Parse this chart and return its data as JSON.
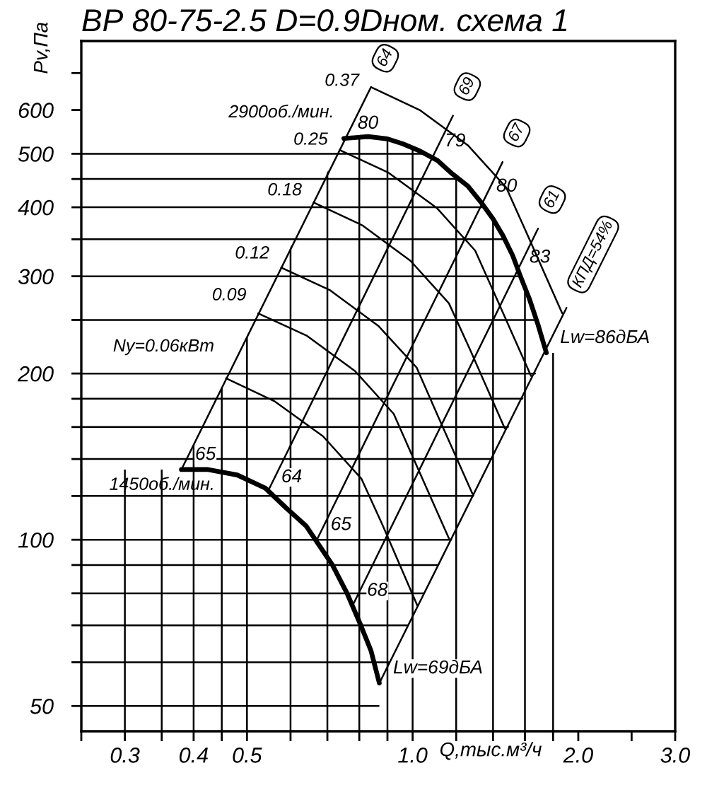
{
  "chart_data": {
    "type": "line",
    "title": "ВР 80-75-2.5 D=0.9Dном. схема 1",
    "xlabel": "Q,тыс.м³/ч",
    "ylabel": "Pv,Па",
    "log": "xy",
    "xlim": [
      0.25,
      3
    ],
    "ylim": [
      45,
      800
    ],
    "xticks": [
      {
        "value": 0.25,
        "label": null
      },
      0.3,
      {
        "value": 0.35,
        "label": null
      },
      0.4,
      {
        "value": 0.45,
        "label": null
      },
      0.5,
      {
        "value": 0.6,
        "label": null
      },
      {
        "value": 0.7,
        "label": null
      },
      {
        "value": 0.8,
        "label": null
      },
      {
        "value": 0.9,
        "label": null
      },
      {
        "value": 1,
        "label": "1.0"
      },
      {
        "value": 1.2,
        "label": null
      },
      {
        "value": 1.4,
        "label": null
      },
      {
        "value": 1.6,
        "label": null
      },
      {
        "value": 1.8,
        "label": null
      },
      {
        "value": 2,
        "label": "2.0"
      },
      {
        "value": 2.5,
        "label": null
      },
      {
        "value": 3,
        "label": "3.0"
      }
    ],
    "yticks": [
      50,
      {
        "value": 60,
        "label": null
      },
      {
        "value": 70,
        "label": null
      },
      {
        "value": 80,
        "label": null
      },
      {
        "value": 90,
        "label": null
      },
      100,
      {
        "value": 120,
        "label": null
      },
      {
        "value": 140,
        "label": null
      },
      {
        "value": 160,
        "label": null
      },
      {
        "value": 180,
        "label": null
      },
      200,
      {
        "value": 250,
        "label": null
      },
      300,
      {
        "value": 350,
        "label": null
      },
      400,
      {
        "value": 450,
        "label": null
      },
      500,
      600,
      {
        "value": 700,
        "label": null
      }
    ],
    "grid": true,
    "series": [
      {
        "name": "2900об./мин.",
        "color": "#000000",
        "x": [
          0.75,
          0.83,
          0.9,
          0.96,
          1.03,
          1.11,
          1.18,
          1.26,
          1.33,
          1.4,
          1.46,
          1.52,
          1.57,
          1.63,
          1.69,
          1.75
        ],
        "values": [
          533,
          537,
          532,
          521,
          506,
          486,
          460,
          437,
          409,
          381,
          355,
          327,
          300,
          273,
          245,
          218
        ]
      },
      {
        "name": "1450об./мин.",
        "color": "#000000",
        "x": [
          0.38,
          0.425,
          0.48,
          0.54,
          0.59,
          0.64,
          0.675,
          0.715,
          0.76,
          0.805,
          0.84,
          0.87
        ],
        "values": [
          134,
          134,
          131,
          124,
          114,
          106,
          98,
          90,
          80,
          70,
          63,
          55
        ]
      },
      {
        "name": "Ny=0.06кВт",
        "color": "#000000",
        "x": [
          0.458,
          0.562,
          0.687,
          0.807,
          0.883,
          1.02
        ],
        "values": [
          196,
          178,
          154,
          129,
          106,
          76
        ]
      },
      {
        "name": "0.09",
        "color": "#000000",
        "x": [
          0.524,
          0.643,
          0.786,
          0.924,
          1.011,
          1.167
        ],
        "values": [
          257,
          234,
          202,
          169,
          138,
          100
        ]
      },
      {
        "name": "0.12",
        "color": "#000000",
        "x": [
          0.577,
          0.708,
          0.866,
          1.017,
          1.113,
          1.285
        ],
        "values": [
          311,
          283,
          244,
          205,
          167,
          121
        ]
      },
      {
        "name": "0.18",
        "color": "#000000",
        "x": [
          0.661,
          0.81,
          0.991,
          1.164,
          1.274,
          1.471
        ],
        "values": [
          408,
          371,
          320,
          268,
          220,
          159
        ]
      },
      {
        "name": "0.25",
        "color": "#000000",
        "x": [
          0.737,
          0.904,
          1.106,
          1.299,
          1.422,
          1.641
        ],
        "values": [
          508,
          462,
          399,
          334,
          273,
          198
        ]
      },
      {
        "name": "0.37",
        "color": "#000000",
        "x": [
          0.84,
          1.03,
          1.26,
          1.48,
          1.62,
          1.87
        ],
        "values": [
          660,
          600,
          518,
          434,
          355,
          257
        ]
      },
      {
        "color": "#000000",
        "x": [
          0.38,
          0.84
        ],
        "values": [
          134,
          660
        ]
      },
      {
        "color": "#000000",
        "x": [
          0.545,
          1.184
        ],
        "values": [
          122,
          586
        ]
      },
      {
        "color": "#000000",
        "x": [
          0.67,
          1.457
        ],
        "values": [
          100,
          483
        ]
      },
      {
        "color": "#000000",
        "x": [
          0.778,
          1.69
        ],
        "values": [
          76,
          366
        ]
      },
      {
        "color": "#000000",
        "x": [
          0.87,
          1.904
        ],
        "values": [
          55,
          263
        ]
      }
    ],
    "annotations": [
      {
        "text": "64",
        "x": 0.84,
        "y": 660
      },
      {
        "text": "69",
        "x": 1.184,
        "y": 586
      },
      {
        "text": "67",
        "x": 1.457,
        "y": 483
      },
      {
        "text": "61",
        "x": 1.69,
        "y": 366
      },
      {
        "text": "КПД=54%",
        "x": 1.904,
        "y": 263
      },
      {
        "text": "80",
        "x": 0.75,
        "y": 533
      },
      {
        "text": "79",
        "x": 1.08,
        "y": 495
      },
      {
        "text": "80",
        "x": 1.34,
        "y": 410
      },
      {
        "text": "83",
        "x": 1.54,
        "y": 305
      },
      {
        "text": "Lw=86дБА",
        "x": 1.75,
        "y": 218
      },
      {
        "text": "65",
        "x": 0.38,
        "y": 134
      },
      {
        "text": "64",
        "x": 0.545,
        "y": 122
      },
      {
        "text": "65",
        "x": 0.67,
        "y": 100
      },
      {
        "text": "68",
        "x": 0.78,
        "y": 76
      },
      {
        "text": "Lw=69дБА",
        "x": 0.87,
        "y": 55
      }
    ]
  }
}
